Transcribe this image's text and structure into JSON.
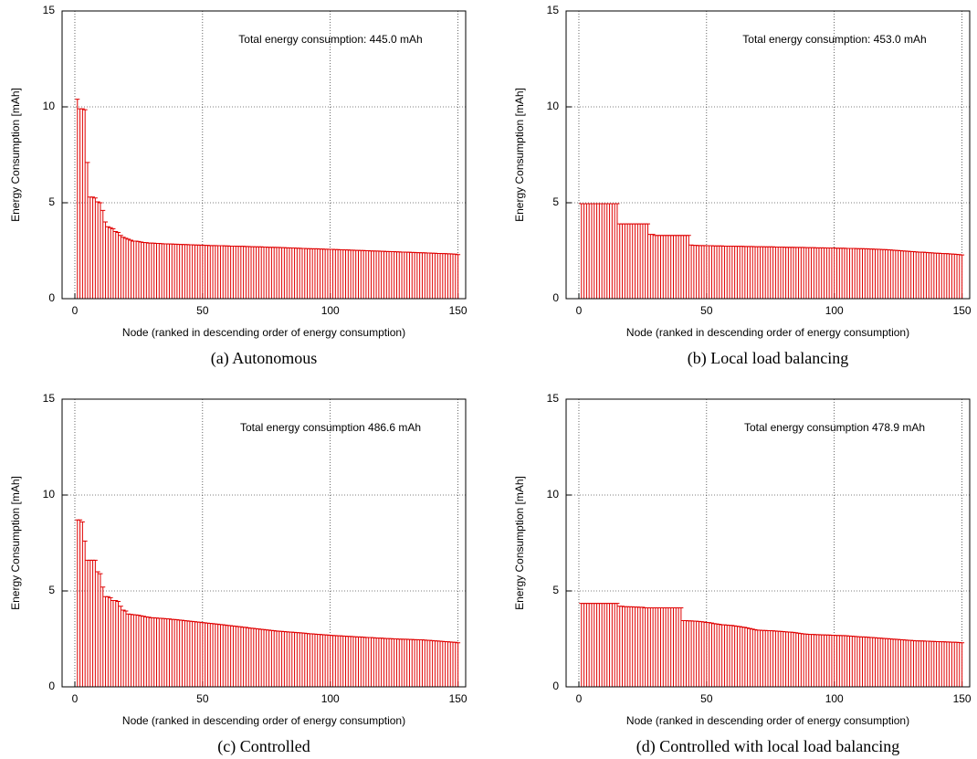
{
  "chart_data": [
    {
      "type": "bar",
      "caption": "(a) Autonomous",
      "annotation": "Total energy consumption: 445.0 mAh",
      "xlabel": "Node (ranked in descending order of energy consumption)",
      "ylabel": "Energy Consumption [mAh]",
      "color": "#e00000",
      "grid": true,
      "xlim": [
        -5,
        153
      ],
      "ylim": [
        0,
        15
      ],
      "xticks": [
        0,
        50,
        100,
        150
      ],
      "yticks": [
        0,
        5,
        10,
        15
      ],
      "x": [
        1,
        2,
        3,
        4,
        5,
        6,
        7,
        8,
        9,
        10,
        11,
        12,
        13,
        14,
        15,
        16,
        17,
        18,
        19,
        20,
        21,
        22,
        23,
        24,
        25,
        26,
        27,
        28,
        29,
        30,
        31,
        32,
        33,
        34,
        35,
        36,
        37,
        38,
        39,
        40,
        41,
        42,
        43,
        44,
        45,
        46,
        47,
        48,
        49,
        50,
        51,
        52,
        53,
        54,
        55,
        56,
        57,
        58,
        59,
        60,
        61,
        62,
        63,
        64,
        65,
        66,
        67,
        68,
        69,
        70,
        71,
        72,
        73,
        74,
        75,
        76,
        77,
        78,
        79,
        80,
        81,
        82,
        83,
        84,
        85,
        86,
        87,
        88,
        89,
        90,
        91,
        92,
        93,
        94,
        95,
        96,
        97,
        98,
        99,
        100,
        101,
        102,
        103,
        104,
        105,
        106,
        107,
        108,
        109,
        110,
        111,
        112,
        113,
        114,
        115,
        116,
        117,
        118,
        119,
        120,
        121,
        122,
        123,
        124,
        125,
        126,
        127,
        128,
        129,
        130,
        131,
        132,
        133,
        134,
        135,
        136,
        137,
        138,
        139,
        140,
        141,
        142,
        143,
        144,
        145,
        146,
        147,
        148,
        149,
        150
      ],
      "values": [
        10.4,
        9.9,
        9.9,
        9.85,
        7.1,
        5.3,
        5.3,
        5.25,
        5.05,
        5.0,
        4.6,
        4.0,
        3.75,
        3.7,
        3.65,
        3.5,
        3.45,
        3.3,
        3.2,
        3.15,
        3.1,
        3.05,
        3.0,
        3.0,
        2.98,
        2.95,
        2.93,
        2.92,
        2.9,
        2.9,
        2.89,
        2.88,
        2.88,
        2.87,
        2.86,
        2.86,
        2.85,
        2.85,
        2.84,
        2.84,
        2.83,
        2.83,
        2.82,
        2.82,
        2.81,
        2.81,
        2.8,
        2.8,
        2.79,
        2.79,
        2.78,
        2.78,
        2.77,
        2.77,
        2.77,
        2.76,
        2.76,
        2.76,
        2.75,
        2.75,
        2.74,
        2.74,
        2.74,
        2.73,
        2.73,
        2.73,
        2.72,
        2.72,
        2.71,
        2.71,
        2.7,
        2.7,
        2.7,
        2.69,
        2.69,
        2.68,
        2.68,
        2.68,
        2.67,
        2.67,
        2.66,
        2.66,
        2.65,
        2.65,
        2.64,
        2.64,
        2.63,
        2.63,
        2.62,
        2.62,
        2.61,
        2.61,
        2.6,
        2.6,
        2.6,
        2.59,
        2.59,
        2.58,
        2.58,
        2.57,
        2.57,
        2.56,
        2.56,
        2.55,
        2.55,
        2.54,
        2.54,
        2.53,
        2.53,
        2.52,
        2.52,
        2.51,
        2.51,
        2.5,
        2.5,
        2.49,
        2.49,
        2.48,
        2.48,
        2.47,
        2.47,
        2.46,
        2.46,
        2.45,
        2.45,
        2.44,
        2.44,
        2.43,
        2.43,
        2.42,
        2.42,
        2.41,
        2.41,
        2.4,
        2.4,
        2.39,
        2.39,
        2.38,
        2.38,
        2.37,
        2.37,
        2.36,
        2.36,
        2.35,
        2.35,
        2.34,
        2.34,
        2.33,
        2.32,
        2.3
      ]
    },
    {
      "type": "bar",
      "caption": "(b) Local load balancing",
      "annotation": "Total energy consumption: 453.0 mAh",
      "xlabel": "Node (ranked in descending order of energy consumption)",
      "ylabel": "Energy Consumption [mAh]",
      "color": "#e00000",
      "grid": true,
      "xlim": [
        -5,
        153
      ],
      "ylim": [
        0,
        15
      ],
      "xticks": [
        0,
        50,
        100,
        150
      ],
      "yticks": [
        0,
        5,
        10,
        15
      ],
      "x": [
        1,
        2,
        3,
        4,
        5,
        6,
        7,
        8,
        9,
        10,
        11,
        12,
        13,
        14,
        15,
        16,
        17,
        18,
        19,
        20,
        21,
        22,
        23,
        24,
        25,
        26,
        27,
        28,
        29,
        30,
        31,
        32,
        33,
        34,
        35,
        36,
        37,
        38,
        39,
        40,
        41,
        42,
        43,
        44,
        45,
        46,
        47,
        48,
        49,
        50,
        51,
        52,
        53,
        54,
        55,
        56,
        57,
        58,
        59,
        60,
        61,
        62,
        63,
        64,
        65,
        66,
        67,
        68,
        69,
        70,
        71,
        72,
        73,
        74,
        75,
        76,
        77,
        78,
        79,
        80,
        81,
        82,
        83,
        84,
        85,
        86,
        87,
        88,
        89,
        90,
        91,
        92,
        93,
        94,
        95,
        96,
        97,
        98,
        99,
        100,
        101,
        102,
        103,
        104,
        105,
        106,
        107,
        108,
        109,
        110,
        111,
        112,
        113,
        114,
        115,
        116,
        117,
        118,
        119,
        120,
        121,
        122,
        123,
        124,
        125,
        126,
        127,
        128,
        129,
        130,
        131,
        132,
        133,
        134,
        135,
        136,
        137,
        138,
        139,
        140,
        141,
        142,
        143,
        144,
        145,
        146,
        147,
        148,
        149,
        150
      ],
      "values": [
        4.95,
        4.95,
        4.95,
        4.95,
        4.95,
        4.95,
        4.95,
        4.95,
        4.95,
        4.95,
        4.95,
        4.95,
        4.95,
        4.95,
        4.95,
        3.9,
        3.9,
        3.9,
        3.9,
        3.9,
        3.9,
        3.9,
        3.9,
        3.9,
        3.9,
        3.9,
        3.9,
        3.35,
        3.35,
        3.3,
        3.3,
        3.3,
        3.3,
        3.3,
        3.3,
        3.3,
        3.3,
        3.3,
        3.3,
        3.3,
        3.3,
        3.3,
        3.3,
        2.8,
        2.78,
        2.78,
        2.77,
        2.77,
        2.77,
        2.76,
        2.76,
        2.76,
        2.75,
        2.75,
        2.75,
        2.75,
        2.74,
        2.74,
        2.74,
        2.74,
        2.73,
        2.73,
        2.73,
        2.73,
        2.72,
        2.72,
        2.72,
        2.72,
        2.71,
        2.71,
        2.71,
        2.71,
        2.7,
        2.7,
        2.7,
        2.7,
        2.69,
        2.69,
        2.69,
        2.69,
        2.68,
        2.68,
        2.68,
        2.68,
        2.67,
        2.67,
        2.67,
        2.67,
        2.66,
        2.66,
        2.66,
        2.66,
        2.65,
        2.65,
        2.65,
        2.65,
        2.64,
        2.64,
        2.64,
        2.64,
        2.63,
        2.63,
        2.63,
        2.63,
        2.62,
        2.62,
        2.62,
        2.62,
        2.61,
        2.61,
        2.61,
        2.6,
        2.6,
        2.59,
        2.59,
        2.58,
        2.58,
        2.57,
        2.56,
        2.56,
        2.55,
        2.54,
        2.53,
        2.52,
        2.51,
        2.5,
        2.49,
        2.48,
        2.47,
        2.46,
        2.45,
        2.44,
        2.43,
        2.42,
        2.42,
        2.41,
        2.4,
        2.39,
        2.38,
        2.37,
        2.37,
        2.36,
        2.35,
        2.35,
        2.34,
        2.33,
        2.32,
        2.31,
        2.3,
        2.28
      ]
    },
    {
      "type": "bar",
      "caption": "(c) Controlled",
      "annotation": "Total energy consumption 486.6 mAh",
      "xlabel": "Node (ranked in descending order of energy consumption)",
      "ylabel": "Energy Consumption [mAh]",
      "color": "#e00000",
      "grid": true,
      "xlim": [
        -5,
        153
      ],
      "ylim": [
        0,
        15
      ],
      "xticks": [
        0,
        50,
        100,
        150
      ],
      "yticks": [
        0,
        5,
        10,
        15
      ],
      "x": [
        1,
        2,
        3,
        4,
        5,
        6,
        7,
        8,
        9,
        10,
        11,
        12,
        13,
        14,
        15,
        16,
        17,
        18,
        19,
        20,
        21,
        22,
        23,
        24,
        25,
        26,
        27,
        28,
        29,
        30,
        31,
        32,
        33,
        34,
        35,
        36,
        37,
        38,
        39,
        40,
        41,
        42,
        43,
        44,
        45,
        46,
        47,
        48,
        49,
        50,
        51,
        52,
        53,
        54,
        55,
        56,
        57,
        58,
        59,
        60,
        61,
        62,
        63,
        64,
        65,
        66,
        67,
        68,
        69,
        70,
        71,
        72,
        73,
        74,
        75,
        76,
        77,
        78,
        79,
        80,
        81,
        82,
        83,
        84,
        85,
        86,
        87,
        88,
        89,
        90,
        91,
        92,
        93,
        94,
        95,
        96,
        97,
        98,
        99,
        100,
        101,
        102,
        103,
        104,
        105,
        106,
        107,
        108,
        109,
        110,
        111,
        112,
        113,
        114,
        115,
        116,
        117,
        118,
        119,
        120,
        121,
        122,
        123,
        124,
        125,
        126,
        127,
        128,
        129,
        130,
        131,
        132,
        133,
        134,
        135,
        136,
        137,
        138,
        139,
        140,
        141,
        142,
        143,
        144,
        145,
        146,
        147,
        148,
        149,
        150
      ],
      "values": [
        8.7,
        8.7,
        8.6,
        7.6,
        6.6,
        6.6,
        6.6,
        6.6,
        6.0,
        5.9,
        5.2,
        4.7,
        4.7,
        4.65,
        4.5,
        4.5,
        4.45,
        4.2,
        4.0,
        3.95,
        3.8,
        3.78,
        3.76,
        3.75,
        3.73,
        3.7,
        3.68,
        3.65,
        3.63,
        3.6,
        3.6,
        3.59,
        3.58,
        3.57,
        3.56,
        3.55,
        3.54,
        3.52,
        3.51,
        3.5,
        3.48,
        3.47,
        3.45,
        3.44,
        3.42,
        3.41,
        3.4,
        3.38,
        3.37,
        3.35,
        3.34,
        3.32,
        3.31,
        3.3,
        3.28,
        3.27,
        3.25,
        3.24,
        3.22,
        3.2,
        3.19,
        3.17,
        3.16,
        3.14,
        3.13,
        3.11,
        3.1,
        3.08,
        3.06,
        3.05,
        3.03,
        3.02,
        3.0,
        2.99,
        2.97,
        2.96,
        2.94,
        2.93,
        2.91,
        2.9,
        2.89,
        2.88,
        2.87,
        2.86,
        2.85,
        2.84,
        2.83,
        2.82,
        2.81,
        2.8,
        2.78,
        2.77,
        2.76,
        2.75,
        2.74,
        2.73,
        2.72,
        2.71,
        2.7,
        2.69,
        2.68,
        2.67,
        2.66,
        2.66,
        2.65,
        2.64,
        2.63,
        2.63,
        2.62,
        2.61,
        2.6,
        2.6,
        2.59,
        2.58,
        2.57,
        2.57,
        2.56,
        2.55,
        2.54,
        2.54,
        2.53,
        2.52,
        2.52,
        2.51,
        2.5,
        2.5,
        2.49,
        2.49,
        2.48,
        2.48,
        2.47,
        2.47,
        2.46,
        2.46,
        2.45,
        2.45,
        2.44,
        2.43,
        2.42,
        2.41,
        2.4,
        2.39,
        2.38,
        2.37,
        2.36,
        2.35,
        2.34,
        2.33,
        2.32,
        2.3
      ]
    },
    {
      "type": "bar",
      "caption": "(d) Controlled with local load balancing",
      "annotation": "Total energy consumption 478.9 mAh",
      "xlabel": "Node (ranked in descending order of energy consumption)",
      "ylabel": "Energy Consumption [mAh]",
      "color": "#e00000",
      "grid": true,
      "xlim": [
        -5,
        153
      ],
      "ylim": [
        0,
        15
      ],
      "xticks": [
        0,
        50,
        100,
        150
      ],
      "yticks": [
        0,
        5,
        10,
        15
      ],
      "x": [
        1,
        2,
        3,
        4,
        5,
        6,
        7,
        8,
        9,
        10,
        11,
        12,
        13,
        14,
        15,
        16,
        17,
        18,
        19,
        20,
        21,
        22,
        23,
        24,
        25,
        26,
        27,
        28,
        29,
        30,
        31,
        32,
        33,
        34,
        35,
        36,
        37,
        38,
        39,
        40,
        41,
        42,
        43,
        44,
        45,
        46,
        47,
        48,
        49,
        50,
        51,
        52,
        53,
        54,
        55,
        56,
        57,
        58,
        59,
        60,
        61,
        62,
        63,
        64,
        65,
        66,
        67,
        68,
        69,
        70,
        71,
        72,
        73,
        74,
        75,
        76,
        77,
        78,
        79,
        80,
        81,
        82,
        83,
        84,
        85,
        86,
        87,
        88,
        89,
        90,
        91,
        92,
        93,
        94,
        95,
        96,
        97,
        98,
        99,
        100,
        101,
        102,
        103,
        104,
        105,
        106,
        107,
        108,
        109,
        110,
        111,
        112,
        113,
        114,
        115,
        116,
        117,
        118,
        119,
        120,
        121,
        122,
        123,
        124,
        125,
        126,
        127,
        128,
        129,
        130,
        131,
        132,
        133,
        134,
        135,
        136,
        137,
        138,
        139,
        140,
        141,
        142,
        143,
        144,
        145,
        146,
        147,
        148,
        149,
        150
      ],
      "values": [
        4.35,
        4.35,
        4.35,
        4.35,
        4.35,
        4.35,
        4.35,
        4.35,
        4.35,
        4.35,
        4.35,
        4.35,
        4.35,
        4.35,
        4.35,
        4.2,
        4.2,
        4.18,
        4.18,
        4.17,
        4.17,
        4.16,
        4.16,
        4.15,
        4.15,
        4.12,
        4.12,
        4.12,
        4.12,
        4.12,
        4.12,
        4.12,
        4.12,
        4.12,
        4.12,
        4.12,
        4.12,
        4.12,
        4.12,
        4.12,
        3.45,
        3.45,
        3.44,
        3.44,
        3.43,
        3.42,
        3.41,
        3.4,
        3.38,
        3.36,
        3.35,
        3.33,
        3.3,
        3.28,
        3.26,
        3.24,
        3.23,
        3.22,
        3.21,
        3.2,
        3.18,
        3.16,
        3.14,
        3.12,
        3.1,
        3.07,
        3.04,
        3.01,
        2.98,
        2.96,
        2.95,
        2.94,
        2.94,
        2.93,
        2.93,
        2.92,
        2.91,
        2.9,
        2.89,
        2.88,
        2.87,
        2.86,
        2.85,
        2.84,
        2.82,
        2.8,
        2.78,
        2.76,
        2.75,
        2.74,
        2.73,
        2.73,
        2.72,
        2.72,
        2.71,
        2.71,
        2.7,
        2.7,
        2.69,
        2.69,
        2.68,
        2.68,
        2.67,
        2.67,
        2.66,
        2.65,
        2.64,
        2.63,
        2.62,
        2.61,
        2.6,
        2.6,
        2.59,
        2.58,
        2.57,
        2.56,
        2.55,
        2.54,
        2.53,
        2.52,
        2.51,
        2.5,
        2.49,
        2.48,
        2.47,
        2.46,
        2.45,
        2.44,
        2.43,
        2.42,
        2.41,
        2.4,
        2.4,
        2.39,
        2.39,
        2.38,
        2.38,
        2.37,
        2.37,
        2.36,
        2.36,
        2.35,
        2.35,
        2.34,
        2.34,
        2.33,
        2.33,
        2.32,
        2.31,
        2.3
      ]
    }
  ]
}
